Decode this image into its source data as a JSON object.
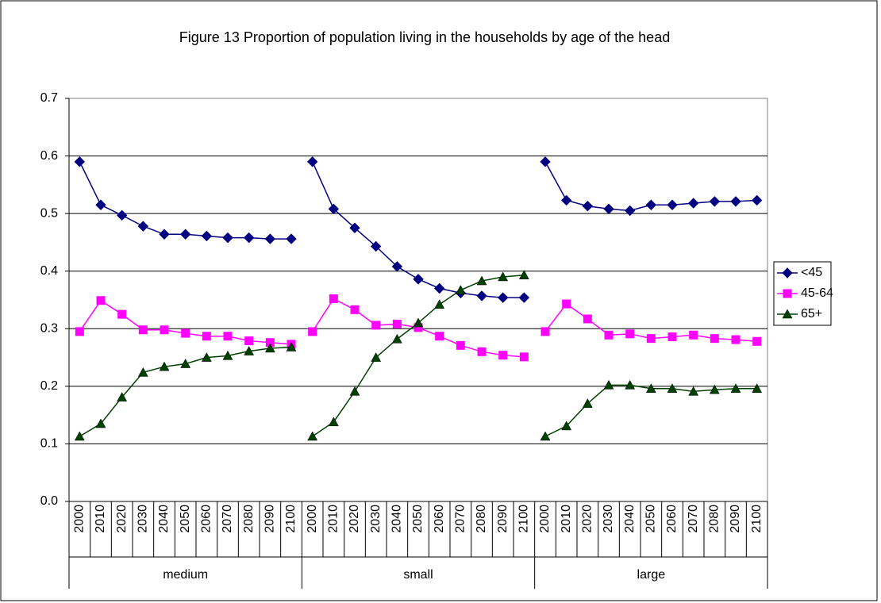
{
  "chart_data": {
    "type": "line",
    "title": "Figure 13 Proportion of population living in the households by age of the head",
    "categories": [
      "2000",
      "2010",
      "2020",
      "2030",
      "2040",
      "2050",
      "2060",
      "2070",
      "2080",
      "2090",
      "2100",
      "2000",
      "2010",
      "2020",
      "2030",
      "2040",
      "2050",
      "2060",
      "2070",
      "2080",
      "2090",
      "2100",
      "2000",
      "2010",
      "2020",
      "2030",
      "2040",
      "2050",
      "2060",
      "2070",
      "2080",
      "2090",
      "2100"
    ],
    "group_labels": [
      "medium",
      "small",
      "large"
    ],
    "series": [
      {
        "name": "<45",
        "color": "#000080",
        "marker": "diamond",
        "values": [
          0.59,
          0.515,
          0.497,
          0.478,
          0.464,
          0.464,
          0.461,
          0.458,
          0.458,
          0.456,
          0.456,
          0.59,
          0.508,
          0.475,
          0.443,
          0.408,
          0.386,
          0.37,
          0.362,
          0.357,
          0.354,
          0.354,
          0.59,
          0.523,
          0.513,
          0.508,
          0.505,
          0.515,
          0.515,
          0.518,
          0.521,
          0.521,
          0.523
        ]
      },
      {
        "name": "45-64",
        "color": "#ff00ff",
        "marker": "square",
        "values": [
          0.295,
          0.349,
          0.325,
          0.298,
          0.298,
          0.292,
          0.287,
          0.287,
          0.279,
          0.276,
          0.273,
          0.295,
          0.352,
          0.333,
          0.306,
          0.308,
          0.302,
          0.287,
          0.271,
          0.26,
          0.254,
          0.251,
          0.295,
          0.343,
          0.317,
          0.289,
          0.291,
          0.283,
          0.286,
          0.289,
          0.283,
          0.281,
          0.278
        ]
      },
      {
        "name": "65+",
        "color": "#004000",
        "marker": "triangle",
        "values": [
          0.113,
          0.135,
          0.181,
          0.224,
          0.234,
          0.239,
          0.25,
          0.253,
          0.261,
          0.266,
          0.268,
          0.113,
          0.138,
          0.191,
          0.25,
          0.282,
          0.31,
          0.342,
          0.367,
          0.383,
          0.39,
          0.393,
          0.113,
          0.131,
          0.17,
          0.202,
          0.202,
          0.196,
          0.196,
          0.191,
          0.194,
          0.196,
          0.196
        ]
      }
    ],
    "ylim": [
      0,
      0.7
    ],
    "yticks": [
      {
        "value": 0,
        "label": "0.0"
      },
      0.1,
      0.2,
      0.3,
      0.4,
      0.5,
      0.6,
      0.7
    ],
    "grid": true,
    "legend": "right"
  }
}
